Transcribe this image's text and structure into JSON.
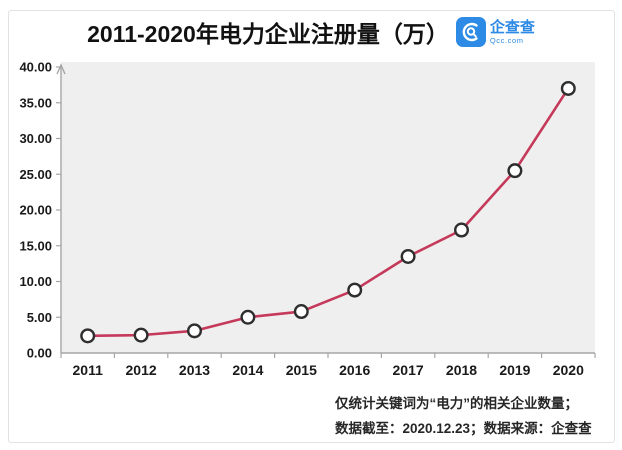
{
  "title": "2011-2020年电力企业注册量（万）",
  "logo": {
    "name": "企查查",
    "subtext": "Qcc.com",
    "color": "#2d8ae5"
  },
  "footnotes": {
    "line1": "仅统计关键词为“电力”的相关企业数量；",
    "line2": "数据截至：2020.12.23；数据来源：企查查"
  },
  "chart_data": {
    "type": "line",
    "title": "2011-2020年电力企业注册量（万）",
    "categories": [
      "2011",
      "2012",
      "2013",
      "2014",
      "2015",
      "2016",
      "2017",
      "2018",
      "2019",
      "2020"
    ],
    "series": [
      {
        "name": "电力企业注册量（万）",
        "values": [
          2.4,
          2.5,
          3.1,
          5.0,
          5.8,
          8.8,
          13.5,
          17.2,
          25.5,
          37.0
        ]
      }
    ],
    "xlabel": "",
    "ylabel": "",
    "ylim": [
      0,
      40
    ],
    "ytick_step": 5,
    "ytick_decimals": 2,
    "grid": false,
    "legend": "none",
    "line_color": "#c5395a",
    "marker_fill": "#ffffff",
    "marker_stroke": "#2e2e2e",
    "plot_bg": "#f0efef",
    "axis_color": "#a6a6a6"
  }
}
